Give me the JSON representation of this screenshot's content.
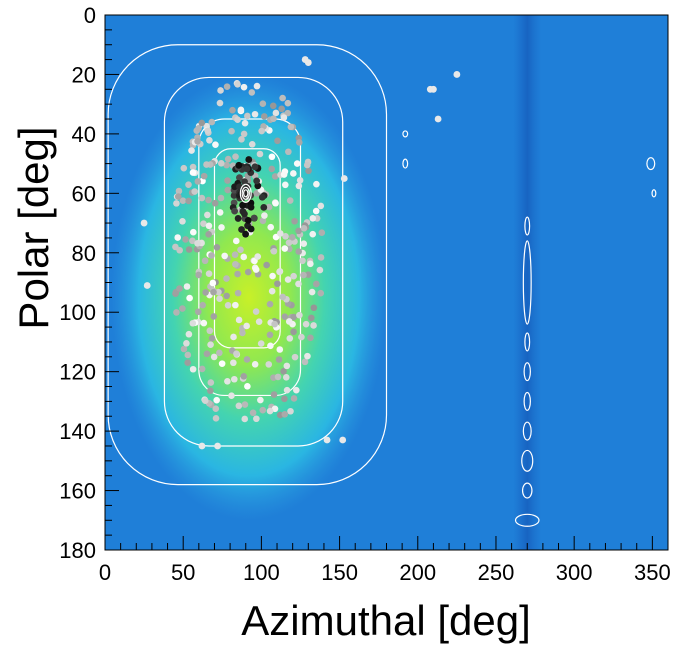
{
  "chart_data": {
    "type": "heatmap",
    "title": "",
    "xlabel": "Azimuthal [deg]",
    "ylabel": "Polar [deg]",
    "xlim": [
      0,
      360
    ],
    "ylim": [
      180,
      0
    ],
    "x_ticks": [
      0,
      50,
      100,
      150,
      200,
      250,
      300,
      350
    ],
    "y_ticks": [
      0,
      20,
      40,
      60,
      80,
      100,
      120,
      140,
      160,
      180
    ],
    "colors": {
      "background": "#1f7fd8",
      "hotspot_low": "#2fb0e0",
      "hotspot_mid": "#44d8b8",
      "hotspot_high": "#b8ee30",
      "contour": "#ffffff",
      "stripe": "#1862c4"
    },
    "hotspot": {
      "az_center": 92,
      "polar_center": 95,
      "az_halfwidth": 55,
      "polar_halfwidth": 60
    },
    "stripe_azimuth": 270,
    "contours": [
      {
        "level": "outer",
        "az_range": [
          2,
          180
        ],
        "polar_range": [
          10,
          158
        ]
      },
      {
        "level": "mid",
        "az_range": [
          38,
          152
        ],
        "polar_range": [
          21,
          145
        ]
      },
      {
        "level": "inner",
        "az_range": [
          60,
          125
        ],
        "polar_range": [
          35,
          128
        ]
      },
      {
        "level": "core",
        "az_range": [
          70,
          112
        ],
        "polar_range": [
          45,
          112
        ]
      }
    ],
    "peak_point": {
      "az": 90,
      "polar": 60
    },
    "stripe_ellipses": [
      {
        "az": 270,
        "polar": 71,
        "daz": 1.5,
        "dpolar": 3
      },
      {
        "az": 270,
        "polar": 90,
        "daz": 2.5,
        "dpolar": 14
      },
      {
        "az": 270,
        "polar": 110,
        "daz": 1.5,
        "dpolar": 3
      },
      {
        "az": 270,
        "polar": 120,
        "daz": 2,
        "dpolar": 3
      },
      {
        "az": 270,
        "polar": 130,
        "daz": 2,
        "dpolar": 3
      },
      {
        "az": 270,
        "polar": 140,
        "daz": 2.5,
        "dpolar": 3
      },
      {
        "az": 270,
        "polar": 150,
        "daz": 3.5,
        "dpolar": 3.5
      },
      {
        "az": 270,
        "polar": 160,
        "daz": 3,
        "dpolar": 2.5
      },
      {
        "az": 270,
        "polar": 170,
        "daz": 7.5,
        "dpolar": 2
      }
    ],
    "small_ellipses": [
      {
        "az": 192,
        "polar": 40,
        "daz": 1.5,
        "dpolar": 1
      },
      {
        "az": 192,
        "polar": 50,
        "daz": 1.5,
        "dpolar": 1.5
      },
      {
        "az": 349,
        "polar": 50,
        "daz": 2.5,
        "dpolar": 2
      },
      {
        "az": 351,
        "polar": 60,
        "daz": 1.2,
        "dpolar": 1.2
      }
    ],
    "outlier_points": [
      {
        "az": 225,
        "polar": 20
      },
      {
        "az": 208,
        "polar": 25
      },
      {
        "az": 210,
        "polar": 25
      },
      {
        "az": 213,
        "polar": 35
      },
      {
        "az": 153,
        "polar": 55
      },
      {
        "az": 27,
        "polar": 91
      },
      {
        "az": 25,
        "polar": 70
      },
      {
        "az": 152,
        "polar": 143
      },
      {
        "az": 142,
        "polar": 143
      },
      {
        "az": 62,
        "polar": 145
      },
      {
        "az": 72,
        "polar": 145
      },
      {
        "az": 128,
        "polar": 15
      },
      {
        "az": 130,
        "polar": 16
      }
    ]
  }
}
